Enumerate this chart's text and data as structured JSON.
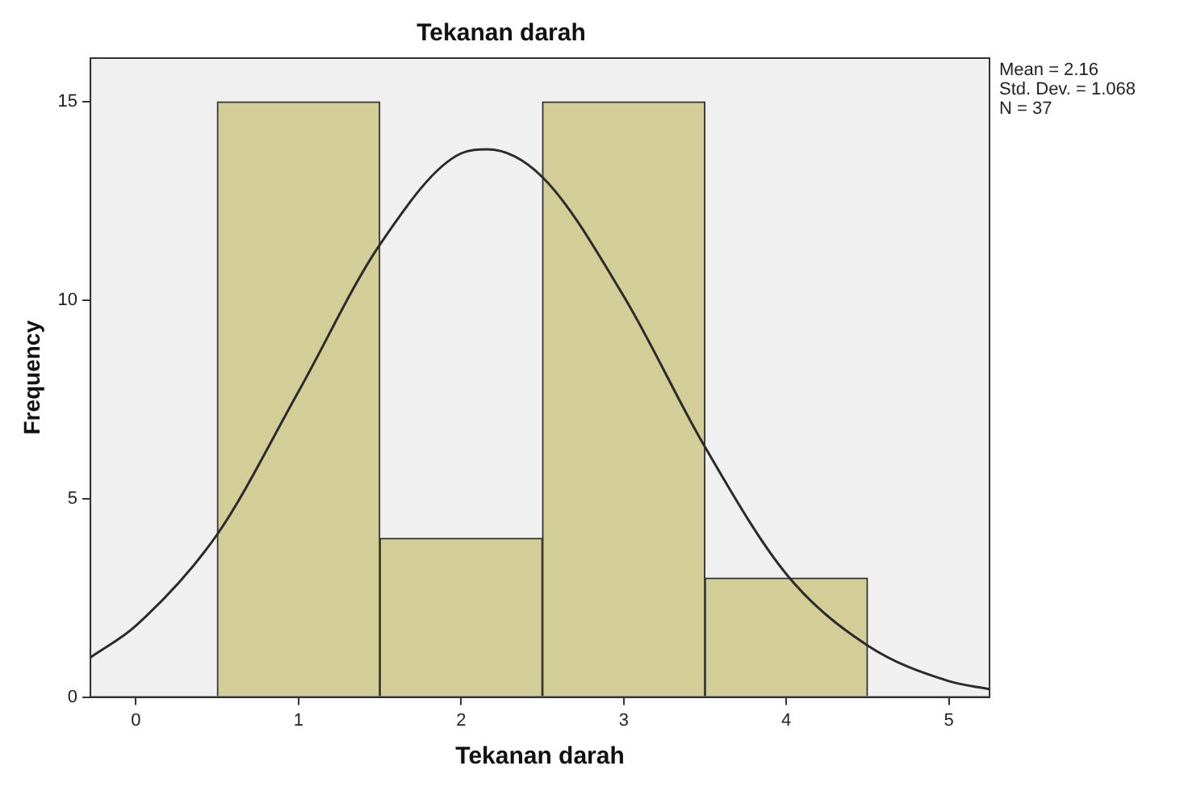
{
  "chart_data": {
    "type": "histogram",
    "title": "Tekanan darah",
    "xlabel": "Tekanan darah",
    "ylabel": "Frequency",
    "bins": [
      0.5,
      1.5,
      2.5,
      3.5,
      4.5
    ],
    "values": [
      15,
      4,
      15,
      3
    ],
    "color": "#d3ce97",
    "series": [
      {
        "type": "line",
        "color": "#2b2b2b",
        "x": [
          -0.28,
          0,
          0.5,
          1,
          1.5,
          2,
          2.16,
          2.5,
          3,
          3.5,
          4,
          4.5,
          5,
          5.25
        ],
        "values": [
          1.0,
          1.8,
          4.1,
          7.7,
          11.4,
          13.7,
          13.8,
          13.1,
          10.1,
          6.3,
          3.1,
          1.3,
          0.4,
          0.2
        ]
      }
    ],
    "xlim": [
      -0.28,
      5.25
    ],
    "xticks": [
      0,
      1,
      2,
      3,
      4,
      5
    ],
    "ylim": [
      0,
      16.1
    ],
    "yticks": [
      0,
      5,
      10,
      15
    ],
    "annotations": [
      "Mean = 2.16",
      "Std. Dev. = 1.068",
      "N = 37"
    ]
  }
}
